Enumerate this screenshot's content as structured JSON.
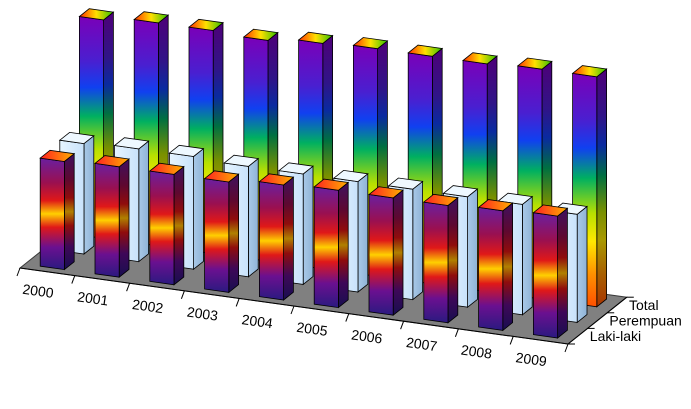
{
  "chart_data": {
    "type": "bar",
    "subtype": "3d-column",
    "categories": [
      "2000",
      "2001",
      "2002",
      "2003",
      "2004",
      "2005",
      "2006",
      "2007",
      "2008",
      "2009"
    ],
    "series_axis_labels": [
      "Total",
      "Perempuan",
      "Laki-laki"
    ],
    "series": [
      {
        "name": "Laki-laki",
        "values": [
          47,
          48,
          48,
          48,
          50,
          51,
          51,
          51,
          52,
          53
        ],
        "fill": "spectrum-dark-red"
      },
      {
        "name": "Perempuan",
        "values": [
          48,
          49,
          49,
          48,
          48,
          48,
          48,
          48,
          48,
          47
        ],
        "fill": "ice-blue"
      },
      {
        "name": "Total",
        "values": [
          95,
          97,
          97,
          96,
          98,
          99,
          99,
          99,
          100,
          100
        ],
        "fill": "rainbow"
      }
    ],
    "title": "",
    "xlabel": "",
    "ylabel": "",
    "value_axis_visible": false,
    "gridlines": false,
    "legend": "none",
    "floor_color": "#808080",
    "colors": {
      "floor": "#808080",
      "floor_edge": "#3a3a3a",
      "ice_blue": "#d6ecff",
      "bar_edge": "#000000"
    }
  }
}
